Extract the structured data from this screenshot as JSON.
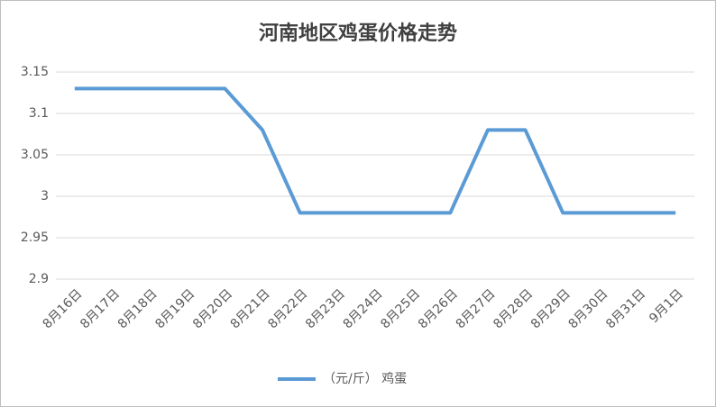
{
  "chart_data": {
    "type": "line",
    "title": "河南地区鸡蛋价格走势",
    "categories": [
      "8月16日",
      "8月17日",
      "8月18日",
      "8月19日",
      "8月20日",
      "8月21日",
      "8月22日",
      "8月23日",
      "8月24日",
      "8月25日",
      "8月26日",
      "8月27日",
      "8月28日",
      "8月29日",
      "8月30日",
      "8月31日",
      "9月1日"
    ],
    "series": [
      {
        "name": "（元/斤） 鸡蛋",
        "color": "#5b9bd5",
        "values": [
          3.13,
          3.13,
          3.13,
          3.13,
          3.13,
          3.08,
          2.98,
          2.98,
          2.98,
          2.98,
          2.98,
          3.08,
          3.08,
          2.98,
          2.98,
          2.98,
          2.98
        ]
      }
    ],
    "ylim": [
      2.9,
      3.15
    ],
    "yticks": [
      2.9,
      2.95,
      3,
      3.05,
      3.1,
      3.15
    ],
    "grid": true,
    "legend": "bottom"
  }
}
